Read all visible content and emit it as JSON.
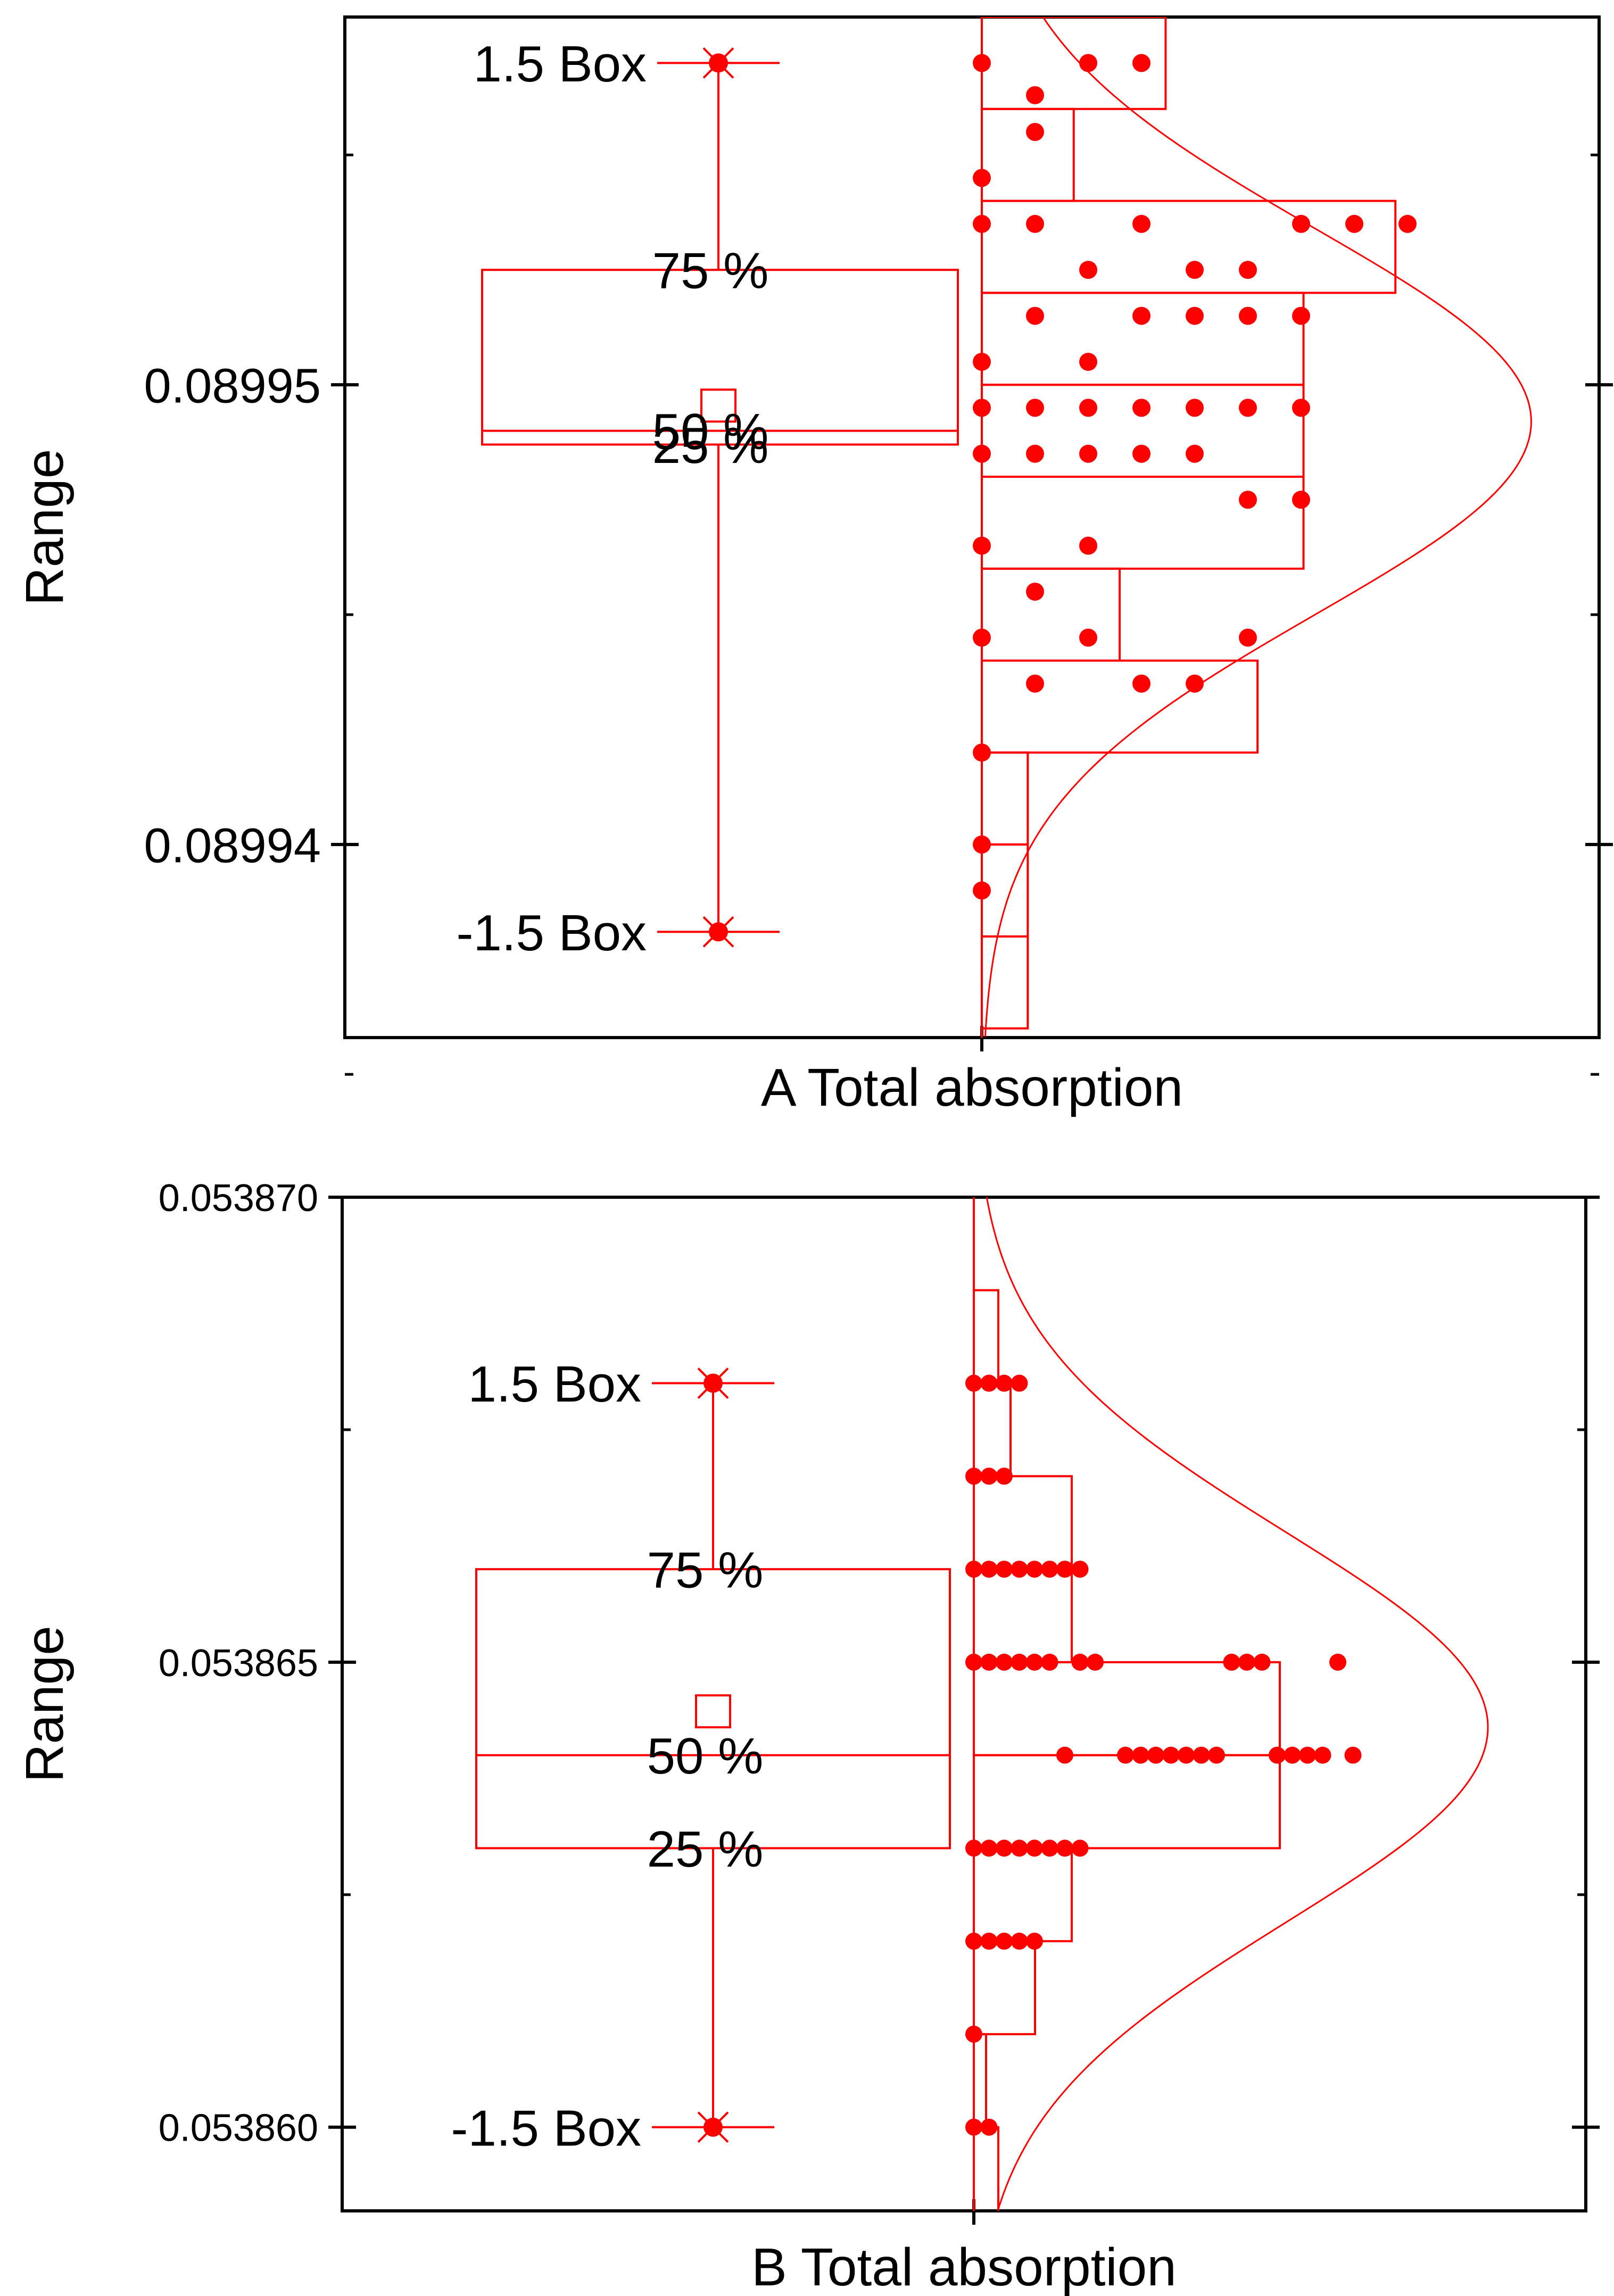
{
  "colors": {
    "accent": "#ff0000",
    "axis": "#000000",
    "background": "#ffffff"
  },
  "chart_data": [
    {
      "type": "box_histogram",
      "panel": "A",
      "xlabel": "A Total absorption",
      "ylabel": "Range",
      "ylim": [
        0.0899358,
        0.089958
      ],
      "y_ticks": [
        0.08994,
        0.08995
      ],
      "y_tick_labels": [
        "0.08994",
        "0.08995"
      ],
      "y_minor_ticks": [
        0.089935,
        0.089945,
        0.089955
      ],
      "box": {
        "q1": 0.0899487,
        "median": 0.089949,
        "q3": 0.0899525,
        "mean": 0.0899492,
        "whisker_high": 0.089957,
        "whisker_low": 0.0899381,
        "whisker_high_label": "1.5 Box",
        "whisker_low_label": "-1.5 Box",
        "q3_label": "75 %",
        "median_label": "50 %",
        "q1_label": "25 %"
      },
      "histogram": {
        "bin_width": 2e-06,
        "bins": [
          {
            "low": 0.089956,
            "count": 4
          },
          {
            "low": 0.089954,
            "count": 2
          },
          {
            "low": 0.089952,
            "count": 9
          },
          {
            "low": 0.08995,
            "count": 7
          },
          {
            "low": 0.089948,
            "count": 7
          },
          {
            "low": 0.089946,
            "count": 7
          },
          {
            "low": 0.089944,
            "count": 3
          },
          {
            "low": 0.089942,
            "count": 6
          },
          {
            "low": 0.08994,
            "count": 1
          },
          {
            "low": 0.089938,
            "count": 1
          },
          {
            "low": 0.089936,
            "count": 1
          }
        ],
        "count_max_fraction": 0.67
      },
      "points": [
        {
          "y": 0.089957,
          "x": [
            0,
            2,
            3
          ]
        },
        {
          "y": 0.0899563,
          "x": [
            1
          ]
        },
        {
          "y": 0.0899555,
          "x": [
            1
          ]
        },
        {
          "y": 0.0899545,
          "x": [
            0
          ]
        },
        {
          "y": 0.0899535,
          "x": [
            0,
            1,
            3,
            6,
            7,
            8
          ]
        },
        {
          "y": 0.0899525,
          "x": [
            2,
            4,
            5
          ]
        },
        {
          "y": 0.0899515,
          "x": [
            1,
            3,
            4,
            5,
            6
          ]
        },
        {
          "y": 0.0899505,
          "x": [
            0,
            2
          ]
        },
        {
          "y": 0.0899495,
          "x": [
            0,
            1,
            2,
            3,
            4,
            5,
            6
          ]
        },
        {
          "y": 0.0899485,
          "x": [
            0,
            1,
            2,
            3,
            4
          ]
        },
        {
          "y": 0.0899475,
          "x": [
            5,
            6
          ]
        },
        {
          "y": 0.0899465,
          "x": [
            0,
            2
          ]
        },
        {
          "y": 0.0899455,
          "x": [
            1
          ]
        },
        {
          "y": 0.0899445,
          "x": [
            0,
            2,
            5
          ]
        },
        {
          "y": 0.0899435,
          "x": [
            1,
            3,
            4
          ]
        },
        {
          "y": 0.089942,
          "x": [
            0
          ]
        },
        {
          "y": 0.08994,
          "x": [
            0
          ]
        },
        {
          "y": 0.089939,
          "x": [
            0
          ]
        }
      ],
      "normal_fit": {
        "mean": 0.0899492,
        "sd": 4.2e-06,
        "peak_fraction": 0.89
      }
    },
    {
      "type": "box_histogram",
      "panel": "B",
      "xlabel": "B Total absorption",
      "ylabel": "Range",
      "ylim": [
        0.0538591,
        0.05387
      ],
      "y_ticks": [
        0.05386,
        0.053865,
        0.05387
      ],
      "y_tick_labels": [
        "0.053860",
        "0.053865",
        "0.053870"
      ],
      "y_minor_ticks": [
        0.0538625,
        0.0538675
      ],
      "box": {
        "q1": 0.053863,
        "median": 0.053864,
        "q3": 0.053866,
        "mean": 0.0538643,
        "whisker_high": 0.053868,
        "whisker_low": 0.05386,
        "whisker_high_label": "1.5 Box",
        "whisker_low_label": "-1.5 Box",
        "q3_label": "75 %",
        "median_label": "50 %",
        "q1_label": "25 %"
      },
      "histogram": {
        "bin_width": 1e-06,
        "bins": [
          {
            "low": 0.053868,
            "count": 2
          },
          {
            "low": 0.053867,
            "count": 3
          },
          {
            "low": 0.053866,
            "count": 8
          },
          {
            "low": 0.053865,
            "count": 8
          },
          {
            "low": 0.053864,
            "count": 25
          },
          {
            "low": 0.053863,
            "count": 25
          },
          {
            "low": 0.053862,
            "count": 8
          },
          {
            "low": 0.053861,
            "count": 5
          },
          {
            "low": 0.05386,
            "count": 1
          },
          {
            "low": 0.053859,
            "count": 2
          }
        ],
        "count_max_fraction": 0.5
      },
      "points": [
        {
          "y": 0.053868,
          "x": [
            0,
            1,
            2,
            3
          ]
        },
        {
          "y": 0.053867,
          "x": [
            0,
            1,
            2
          ]
        },
        {
          "y": 0.053866,
          "x": [
            0,
            1,
            2,
            3,
            4,
            5,
            6,
            7
          ]
        },
        {
          "y": 0.053865,
          "x": [
            0,
            1,
            2,
            3,
            4,
            5,
            7,
            8,
            17,
            18,
            19,
            24
          ]
        },
        {
          "y": 0.053864,
          "x": [
            6,
            10,
            11,
            12,
            13,
            14,
            15,
            16,
            20,
            21,
            22,
            23,
            25
          ]
        },
        {
          "y": 0.053863,
          "x": [
            0,
            1,
            2,
            3,
            4,
            5,
            6,
            7
          ]
        },
        {
          "y": 0.053862,
          "x": [
            0,
            1,
            2,
            3,
            4
          ]
        },
        {
          "y": 0.053861,
          "x": [
            0
          ]
        },
        {
          "y": 0.05386,
          "x": [
            0,
            1
          ]
        }
      ],
      "normal_fit": {
        "mean": 0.0538643,
        "sd": 2.1e-06,
        "peak_fraction": 0.84
      }
    }
  ]
}
